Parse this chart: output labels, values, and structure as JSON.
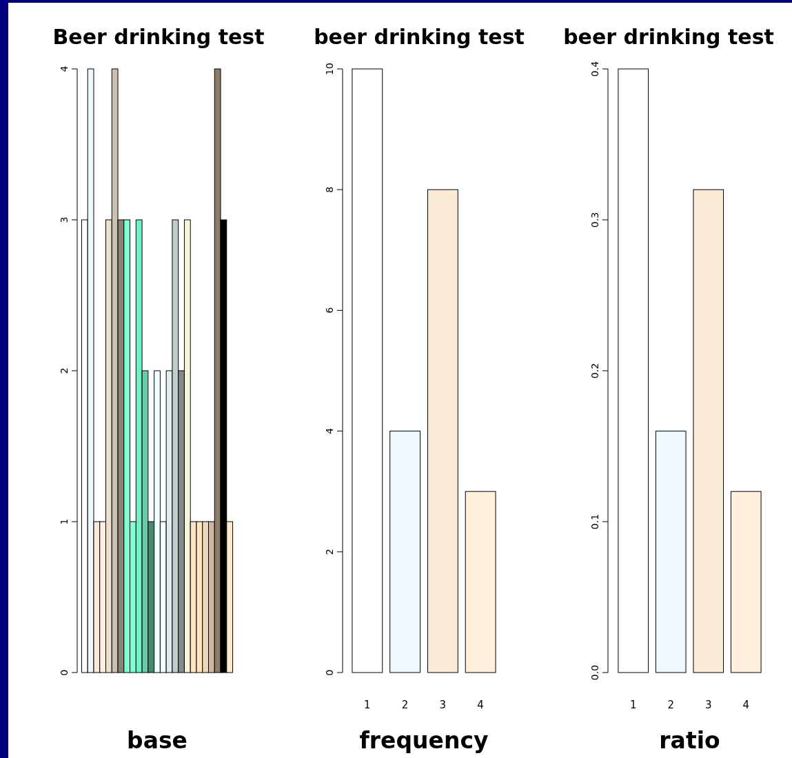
{
  "chart_data": [
    {
      "type": "bar",
      "title": "Beer drinking test",
      "xlabel": "base",
      "categories": [
        null,
        null,
        null,
        null,
        null,
        null,
        null,
        null,
        null,
        null,
        null,
        null,
        null,
        null,
        null,
        null,
        null,
        null,
        null,
        null,
        null,
        null,
        null,
        null,
        null
      ],
      "values": [
        3,
        4,
        1,
        1,
        3,
        4,
        3,
        3,
        1,
        3,
        2,
        1,
        2,
        1,
        2,
        3,
        2,
        3,
        1,
        1,
        1,
        1,
        4,
        3,
        1
      ],
      "colors": [
        "#ffffff",
        "#f0f8ff",
        "#faebd7",
        "#ffefdb",
        "#eedfcc",
        "#cdc0b0",
        "#8b8378",
        "#7fffd4",
        "#7fffd4",
        "#76eec6",
        "#66cdaa",
        "#458b74",
        "#f0ffff",
        "#f0ffff",
        "#e0eeee",
        "#c1cdcd",
        "#838b8b",
        "#f5f5dc",
        "#ffe4c4",
        "#ffe4c4",
        "#eed5b7",
        "#cdb79e",
        "#8b7d6b",
        "#000000",
        "#ffebcd"
      ],
      "ylim": [
        0,
        4
      ],
      "yticks": [
        0,
        1,
        2,
        3,
        4
      ],
      "tick_labels": "y",
      "grid": false
    },
    {
      "type": "bar",
      "title": "beer drinking test",
      "xlabel": "frequency",
      "categories": [
        "1",
        "2",
        "3",
        "4"
      ],
      "values": [
        10,
        4,
        8,
        3
      ],
      "colors": [
        "#ffffff",
        "#f0f8ff",
        "#faebd7",
        "#ffefdb"
      ],
      "ylim": [
        0,
        10
      ],
      "yticks": [
        0,
        2,
        4,
        6,
        8,
        10
      ],
      "grid": false
    },
    {
      "type": "bar",
      "title": "beer drinking test",
      "xlabel": "ratio",
      "categories": [
        "1",
        "2",
        "3",
        "4"
      ],
      "values": [
        0.4,
        0.16,
        0.32,
        0.12
      ],
      "colors": [
        "#ffffff",
        "#f0f8ff",
        "#faebd7",
        "#ffefdb"
      ],
      "ylim": [
        0,
        0.4
      ],
      "yticks": [
        {
          "value": 0,
          "label": "0.0"
        },
        {
          "value": 0.1,
          "label": "0.1"
        },
        {
          "value": 0.2,
          "label": "0.2"
        },
        {
          "value": 0.3,
          "label": "0.3"
        },
        {
          "value": 0.4,
          "label": "0.4"
        }
      ],
      "grid": false
    }
  ]
}
